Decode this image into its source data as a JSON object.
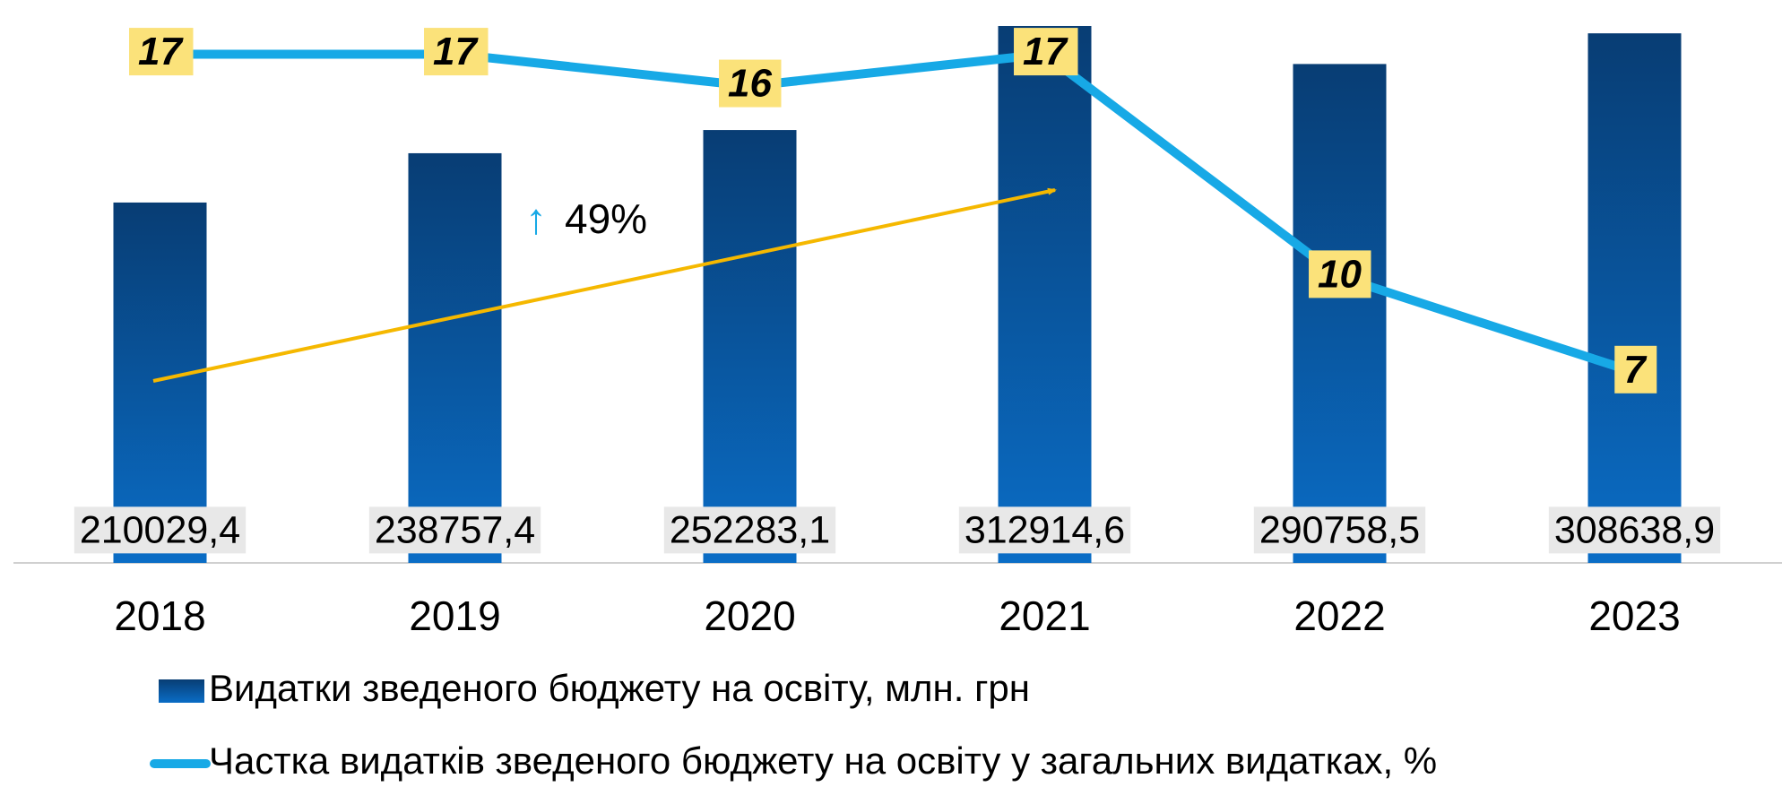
{
  "chart_data": {
    "type": "bar",
    "categories": [
      "2018",
      "2019",
      "2020",
      "2021",
      "2022",
      "2023"
    ],
    "series": [
      {
        "name": "Видатки зведеного бюджету на освіту, млн. грн",
        "type": "bar",
        "color": "#0a5aa8",
        "values": [
          210029.4,
          238757.4,
          252283.1,
          312914.6,
          290758.5,
          308638.9
        ],
        "value_labels": [
          "210029,4",
          "238757,4",
          "252283,1",
          "312914,6",
          "290758,5",
          "308638,9"
        ]
      },
      {
        "name": "Частка видатків зведеного бюджету на освіту у загальних видатках, %",
        "type": "line",
        "axis": "y2",
        "color": "#17a9e6",
        "values": [
          17,
          17,
          16,
          17,
          10,
          7
        ]
      }
    ],
    "annotation": "49%",
    "ylim": [
      0,
      315000
    ],
    "y2lim": [
      1,
      18
    ]
  }
}
